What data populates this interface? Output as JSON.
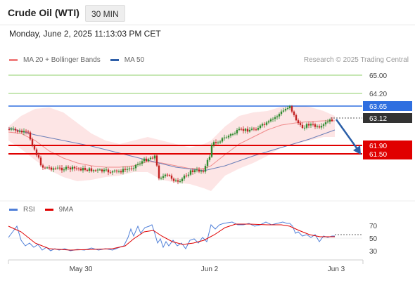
{
  "header": {
    "title": "Crude Oil (WTI)",
    "timeframe": "30 MIN",
    "datetime": "Monday, June 2, 2025 11:13:03 PM CET"
  },
  "legend": {
    "bb_label": "MA 20 + Bollinger Bands",
    "ma50_label": "MA 50",
    "bb_color": "#f08080",
    "ma50_color": "#2e5fa8",
    "watermark": "Research © 2025 Trading Central"
  },
  "levels": [
    {
      "value": "65.00",
      "kind": "green"
    },
    {
      "value": "64.20",
      "kind": "green"
    },
    {
      "value": "63.65",
      "kind": "blue",
      "color": "#2f6fe0"
    },
    {
      "value": "63.12",
      "kind": "current",
      "color": "#333333"
    },
    {
      "value": "61.90",
      "kind": "red",
      "color": "#e00000"
    },
    {
      "value": "61.50",
      "kind": "red",
      "color": "#e00000"
    }
  ],
  "rsi_legend": {
    "rsi_label": "RSI",
    "ma_label": "9MA",
    "rsi_color": "#4f7fd8",
    "ma_color": "#e00000"
  },
  "rsi_axis": [
    "70",
    "50",
    "30"
  ],
  "x_axis": [
    "May 30",
    "Jun 2",
    "Jun 3"
  ]
}
